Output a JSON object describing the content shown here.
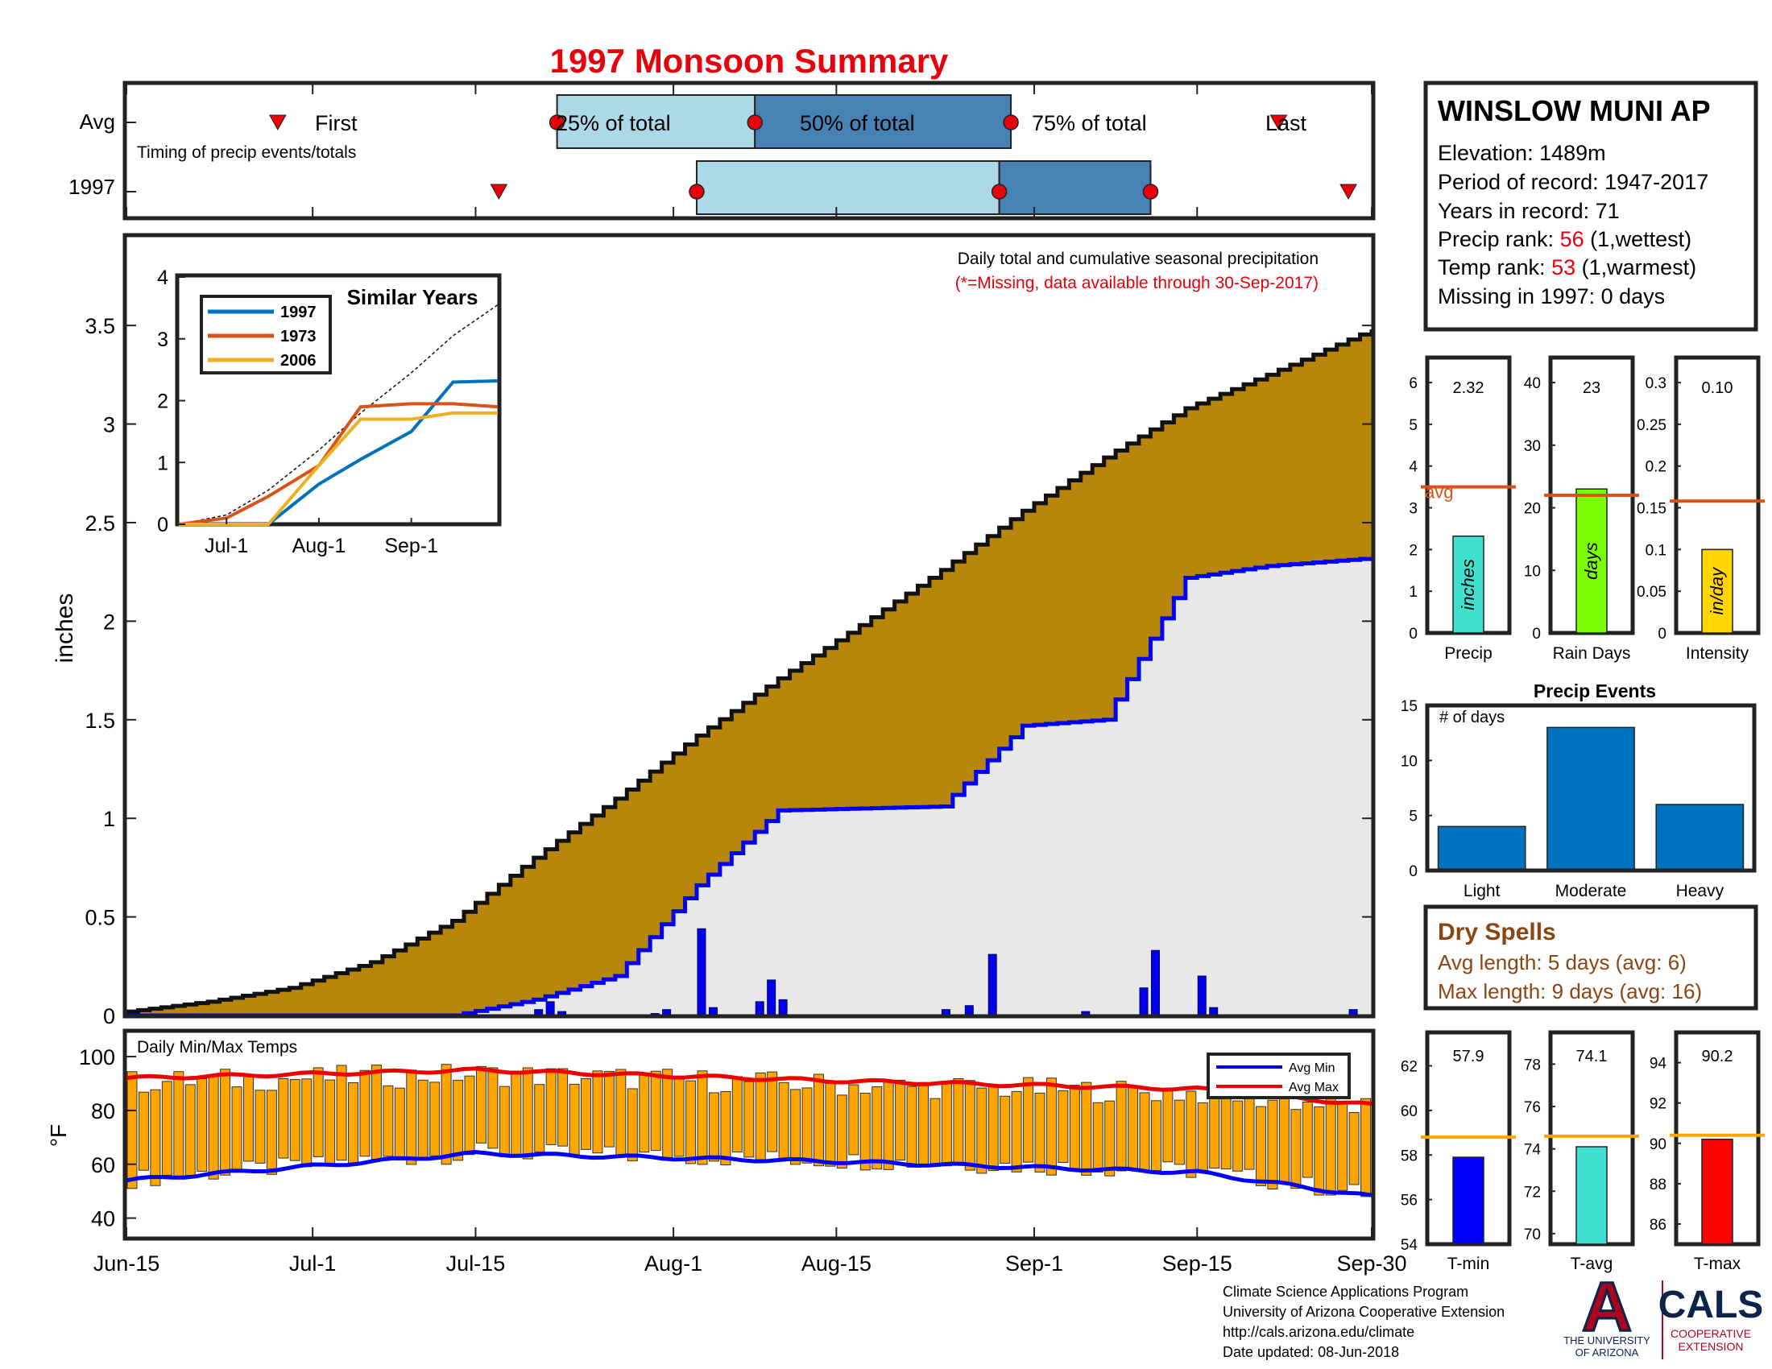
{
  "title": "1997 Monsoon Summary",
  "timing": {
    "row_labels": [
      "Avg",
      "1997"
    ],
    "caption": "Timing of precip events/totals",
    "avg_labels": {
      "first": "First",
      "p25": "25% of total",
      "p50": "50% of total",
      "p75": "75% of total",
      "last": "Last"
    },
    "avg_markers": {
      "first": "Jun-28",
      "p25": "Jul-22",
      "p50": "Aug-8",
      "p75": "Aug-30",
      "last": "Sep-22"
    },
    "year_markers": {
      "first": "Jul-17",
      "p25": "Aug-3",
      "p50": "Aug-29",
      "p75": "Sep-11",
      "last": "Sep-28"
    }
  },
  "station": {
    "name": "WINSLOW MUNI AP",
    "elevation": "Elevation: 1489m",
    "period": "Period of record: 1947-2017",
    "years": "Years in record: 71",
    "precip_rank_label": "Precip rank: ",
    "precip_rank_value": "56",
    "precip_rank_note": " (1,wettest)",
    "temp_rank_label": "Temp rank: ",
    "temp_rank_value": "53",
    "temp_rank_note": " (1,warmest)",
    "missing": "Missing in 1997: 0 days"
  },
  "main_chart": {
    "ylabel": "inches",
    "note1": "Daily total and cumulative seasonal precipitation",
    "note2": "(*=Missing, data available through 30-Sep-2017)",
    "x_ticks": [
      "Jun-15",
      "Jul-1",
      "Jul-15",
      "Aug-1",
      "Aug-15",
      "Sep-1",
      "Sep-15",
      "Sep-30"
    ],
    "y_ticks": [
      "0",
      "0.5",
      "1",
      "1.5",
      "2",
      "2.5",
      "3",
      "3.5"
    ]
  },
  "inset": {
    "title": "Similar Years",
    "x_ticks": [
      "Jul-1",
      "Aug-1",
      "Sep-1"
    ],
    "y_ticks": [
      "0",
      "1",
      "2",
      "3",
      "4"
    ]
  },
  "summary_bars": [
    {
      "label": "Precip",
      "value_text": "2.32",
      "inner": "inches",
      "color": "#40e0d0",
      "value": 2.32,
      "avg": 3.5,
      "avg_label": "avg",
      "y_ticks": [
        "0",
        "1",
        "2",
        "3",
        "4",
        "5",
        "6"
      ],
      "ymax": 6.6
    },
    {
      "label": "Rain Days",
      "value_text": "23",
      "inner": "days",
      "color": "#7cfc00",
      "value": 23,
      "avg": 22,
      "avg_label": "",
      "y_ticks": [
        "0",
        "10",
        "20",
        "30",
        "40"
      ],
      "ymax": 44
    },
    {
      "label": "Intensity",
      "value_text": "0.10",
      "inner": "in/day",
      "color": "#ffd700",
      "value": 0.1,
      "avg": 0.158,
      "avg_label": "",
      "y_ticks": [
        "0",
        "0.05",
        "0.1",
        "0.15",
        "0.2",
        "0.25",
        "0.3"
      ],
      "ymax": 0.33
    }
  ],
  "events": {
    "title": "Precip Events",
    "ylabel": "# of days",
    "categories": [
      "Light",
      "Moderate",
      "Heavy"
    ],
    "values": [
      4,
      13,
      6
    ],
    "y_ticks": [
      "0",
      "5",
      "10",
      "15"
    ]
  },
  "dry_spells": {
    "title": "Dry Spells",
    "avg_length": "Avg length: 5 days (avg: 6)",
    "max_length": "Max length: 9 days (avg: 16)"
  },
  "temps": {
    "caption": "Daily Min/Max Temps",
    "ylabel": "°F",
    "legend_min": "Avg Min",
    "legend_max": "Avg Max",
    "y_ticks": [
      "40",
      "60",
      "80",
      "100"
    ]
  },
  "temp_bars": [
    {
      "label": "T-min",
      "value_text": "57.9",
      "value": 57.9,
      "avg": 58.8,
      "ymin": 54,
      "ymax": 63.5,
      "y_ticks": [
        "54",
        "56",
        "58",
        "60",
        "62"
      ],
      "color": "#0000ff"
    },
    {
      "label": "T-avg",
      "value_text": "74.1",
      "value": 74.1,
      "avg": 74.6,
      "ymin": 69.5,
      "ymax": 79.5,
      "y_ticks": [
        "70",
        "72",
        "74",
        "76",
        "78"
      ],
      "color": "#40e0d0"
    },
    {
      "label": "T-max",
      "value_text": "90.2",
      "value": 90.2,
      "avg": 90.4,
      "ymin": 85,
      "ymax": 95.5,
      "y_ticks": [
        "86",
        "88",
        "90",
        "92",
        "94"
      ],
      "color": "#ff0000"
    }
  ],
  "footer": {
    "line1": "Climate Science Applications Program",
    "line2": "University of Arizona Cooperative Extension",
    "line3": "http://cals.arizona.edu/climate",
    "line4": " Date updated: 08-Jun-2018"
  },
  "logos": {
    "ua_a": "A",
    "ua_line1": "THE UNIVERSITY",
    "ua_line2": "OF ARIZONA",
    "cals": "CALS",
    "cals_line1": "COOPERATIVE",
    "cals_line2": "EXTENSION"
  },
  "chart_data": [
    {
      "type": "area",
      "title": "Daily total and cumulative seasonal precipitation",
      "ylabel": "inches",
      "ylim": [
        0,
        3.95
      ],
      "x_dates": [
        "Jun-15",
        "Jun-22",
        "Jun-29",
        "Jul-6",
        "Jul-13",
        "Jul-20",
        "Jul-27",
        "Aug-3",
        "Aug-10",
        "Aug-17",
        "Aug-24",
        "Aug-31",
        "Sep-7",
        "Sep-14",
        "Sep-21",
        "Sep-30"
      ],
      "series": [
        {
          "name": "Avg",
          "values": [
            0.02,
            0.07,
            0.14,
            0.27,
            0.48,
            0.8,
            1.1,
            1.42,
            1.71,
            1.98,
            2.26,
            2.56,
            2.83,
            3.08,
            3.25,
            3.48
          ]
        },
        {
          "name": "1997",
          "values": [
            0,
            0,
            0,
            0,
            0,
            0.08,
            0.2,
            0.66,
            1.04,
            1.05,
            1.06,
            1.47,
            1.5,
            2.22,
            2.28,
            2.32
          ]
        }
      ],
      "daily_precip_1997": [
        {
          "date": "Jul-20",
          "value": 0.03
        },
        {
          "date": "Jul-21",
          "value": 0.07
        },
        {
          "date": "Jul-22",
          "value": 0.02
        },
        {
          "date": "Jul-30",
          "value": 0.01
        },
        {
          "date": "Jul-31",
          "value": 0.03
        },
        {
          "date": "Aug-3",
          "value": 0.44
        },
        {
          "date": "Aug-4",
          "value": 0.04
        },
        {
          "date": "Aug-8",
          "value": 0.07
        },
        {
          "date": "Aug-9",
          "value": 0.18
        },
        {
          "date": "Aug-10",
          "value": 0.08
        },
        {
          "date": "Aug-24",
          "value": 0.03
        },
        {
          "date": "Aug-26",
          "value": 0.05
        },
        {
          "date": "Aug-28",
          "value": 0.31
        },
        {
          "date": "Sep-5",
          "value": 0.02
        },
        {
          "date": "Sep-10",
          "value": 0.14
        },
        {
          "date": "Sep-11",
          "value": 0.33
        },
        {
          "date": "Sep-15",
          "value": 0.2
        },
        {
          "date": "Sep-16",
          "value": 0.04
        },
        {
          "date": "Sep-28",
          "value": 0.03
        }
      ]
    },
    {
      "type": "line",
      "title": "Similar Years",
      "ylim": [
        0,
        4
      ],
      "x_dates": [
        "Jun-15",
        "Jul-1",
        "Jul-15",
        "Aug-1",
        "Aug-15",
        "Sep-1",
        "Sep-15",
        "Sep-30"
      ],
      "series": [
        {
          "name": "Avg",
          "values": [
            0,
            0.15,
            0.55,
            1.2,
            1.8,
            2.45,
            3.05,
            3.55
          ]
        },
        {
          "name": "1997",
          "values": [
            0,
            0,
            0,
            0.65,
            1.05,
            1.5,
            2.3,
            2.32
          ]
        },
        {
          "name": "1973",
          "values": [
            0,
            0.1,
            0.45,
            0.95,
            1.9,
            1.95,
            1.95,
            1.9
          ]
        },
        {
          "name": "2006",
          "values": [
            0,
            0,
            0,
            0.95,
            1.7,
            1.7,
            1.8,
            1.8
          ]
        }
      ]
    },
    {
      "type": "bar",
      "title": "Daily Min/Max Temps",
      "ylabel": "°F",
      "ylim": [
        33,
        109
      ],
      "avg_min": {
        "dates": [
          "Jun-15",
          "Jul-15",
          "Aug-15",
          "Sep-15",
          "Sep-30"
        ],
        "values": [
          54,
          64,
          61,
          57,
          48
        ]
      },
      "avg_max": {
        "dates": [
          "Jun-15",
          "Jul-15",
          "Aug-15",
          "Sep-15",
          "Sep-30"
        ],
        "values": [
          92,
          95,
          91,
          88,
          82
        ]
      }
    }
  ]
}
